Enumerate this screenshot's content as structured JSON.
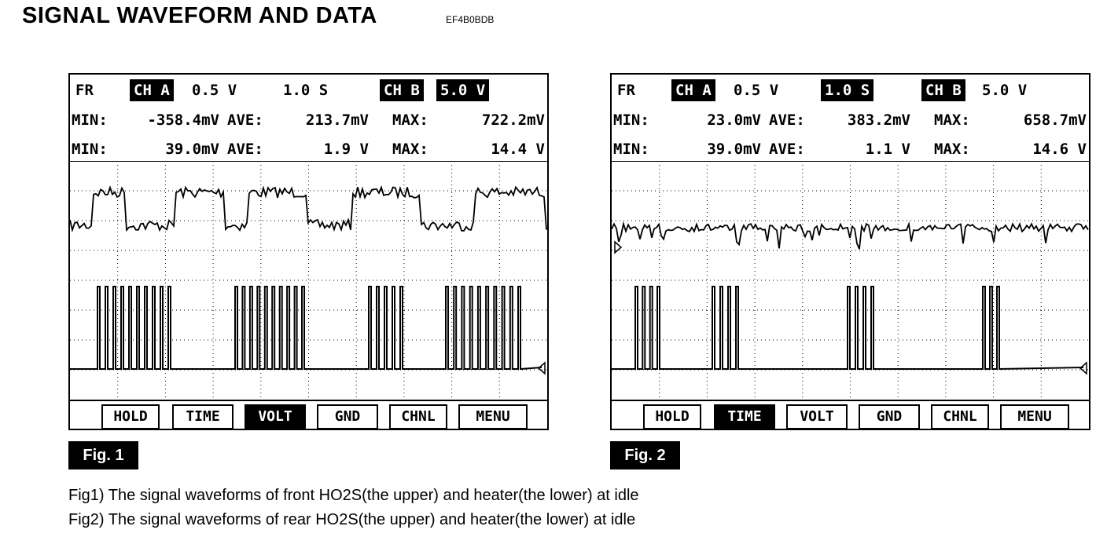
{
  "header": {
    "title": "SIGNAL WAVEFORM AND DATA",
    "code": "EF4B0BDB"
  },
  "figures": [
    {
      "settings": [
        "FR",
        "CH A",
        "0.5 V",
        "1.0 S",
        "CH B",
        "5.0 V"
      ],
      "stats": [
        [
          "MIN:",
          "-358.4mV",
          "AVE:",
          "213.7mV",
          "MAX:",
          "722.2mV"
        ],
        [
          "MIN:",
          "39.0mV",
          "AVE:",
          "1.9 V",
          "MAX:",
          "14.4 V"
        ]
      ],
      "buttons": [
        "HOLD",
        "TIME",
        "VOLT",
        "GND",
        "CHNL",
        "MENU"
      ],
      "label": "Fig. 1"
    },
    {
      "settings": [
        "FR",
        "CH A",
        "0.5 V",
        "1.0 S",
        "CH B",
        "5.0 V"
      ],
      "stats": [
        [
          "MIN:",
          "23.0mV",
          "AVE:",
          "383.2mV",
          "MAX:",
          "658.7mV"
        ],
        [
          "MIN:",
          "39.0mV",
          "AVE:",
          "1.1 V",
          "MAX:",
          "14.6 V"
        ]
      ],
      "buttons": [
        "HOLD",
        "TIME",
        "VOLT",
        "GND",
        "CHNL",
        "MENU"
      ],
      "label": "Fig. 2"
    }
  ],
  "captions": [
    "Fig1) The signal waveforms of front HO2S(the upper) and heater(the lower) at idle",
    "Fig2) The signal waveforms of rear HO2S(the upper) and heater(the lower) at idle"
  ]
}
